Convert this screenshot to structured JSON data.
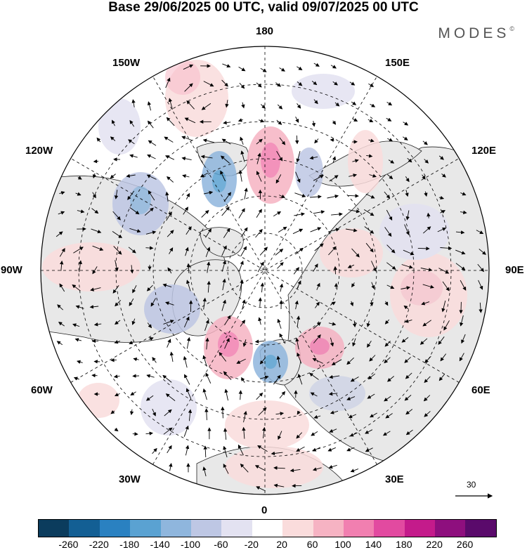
{
  "title": "Base 29/06/2025 00 UTC, valid 09/07/2025 00 UTC",
  "brand": "MODES",
  "brand_mark": "©",
  "longitude_labels": {
    "top": "180",
    "bottom": "0",
    "left": "90W",
    "right": "90E",
    "upper_left_30": "150W",
    "upper_left_60": "120W",
    "upper_right_30": "150E",
    "upper_right_60": "120E",
    "lower_left_30": "30W",
    "lower_left_60": "60W",
    "lower_right_30": "30E",
    "lower_right_60": "60E"
  },
  "reference_vector": {
    "label": "30"
  },
  "colorbar": {
    "colors": [
      "#0b3c5d",
      "#135f94",
      "#2a81c1",
      "#5aa2d2",
      "#8fb6dd",
      "#bec7e4",
      "#e3e2f1",
      "#ffffff",
      "#fadcdc",
      "#f6b3c3",
      "#f17fb0",
      "#e24aa0",
      "#c41b8b",
      "#8e0f7e",
      "#5a0a6b"
    ],
    "ticks": [
      "-260",
      "-220",
      "-180",
      "-140",
      "-100",
      "-60",
      "-20",
      "20",
      "60",
      "100",
      "140",
      "180",
      "220",
      "260"
    ]
  },
  "colors": {
    "land_fill": "#e8e8e8",
    "coast": "#222222",
    "grid": "#000000"
  }
}
